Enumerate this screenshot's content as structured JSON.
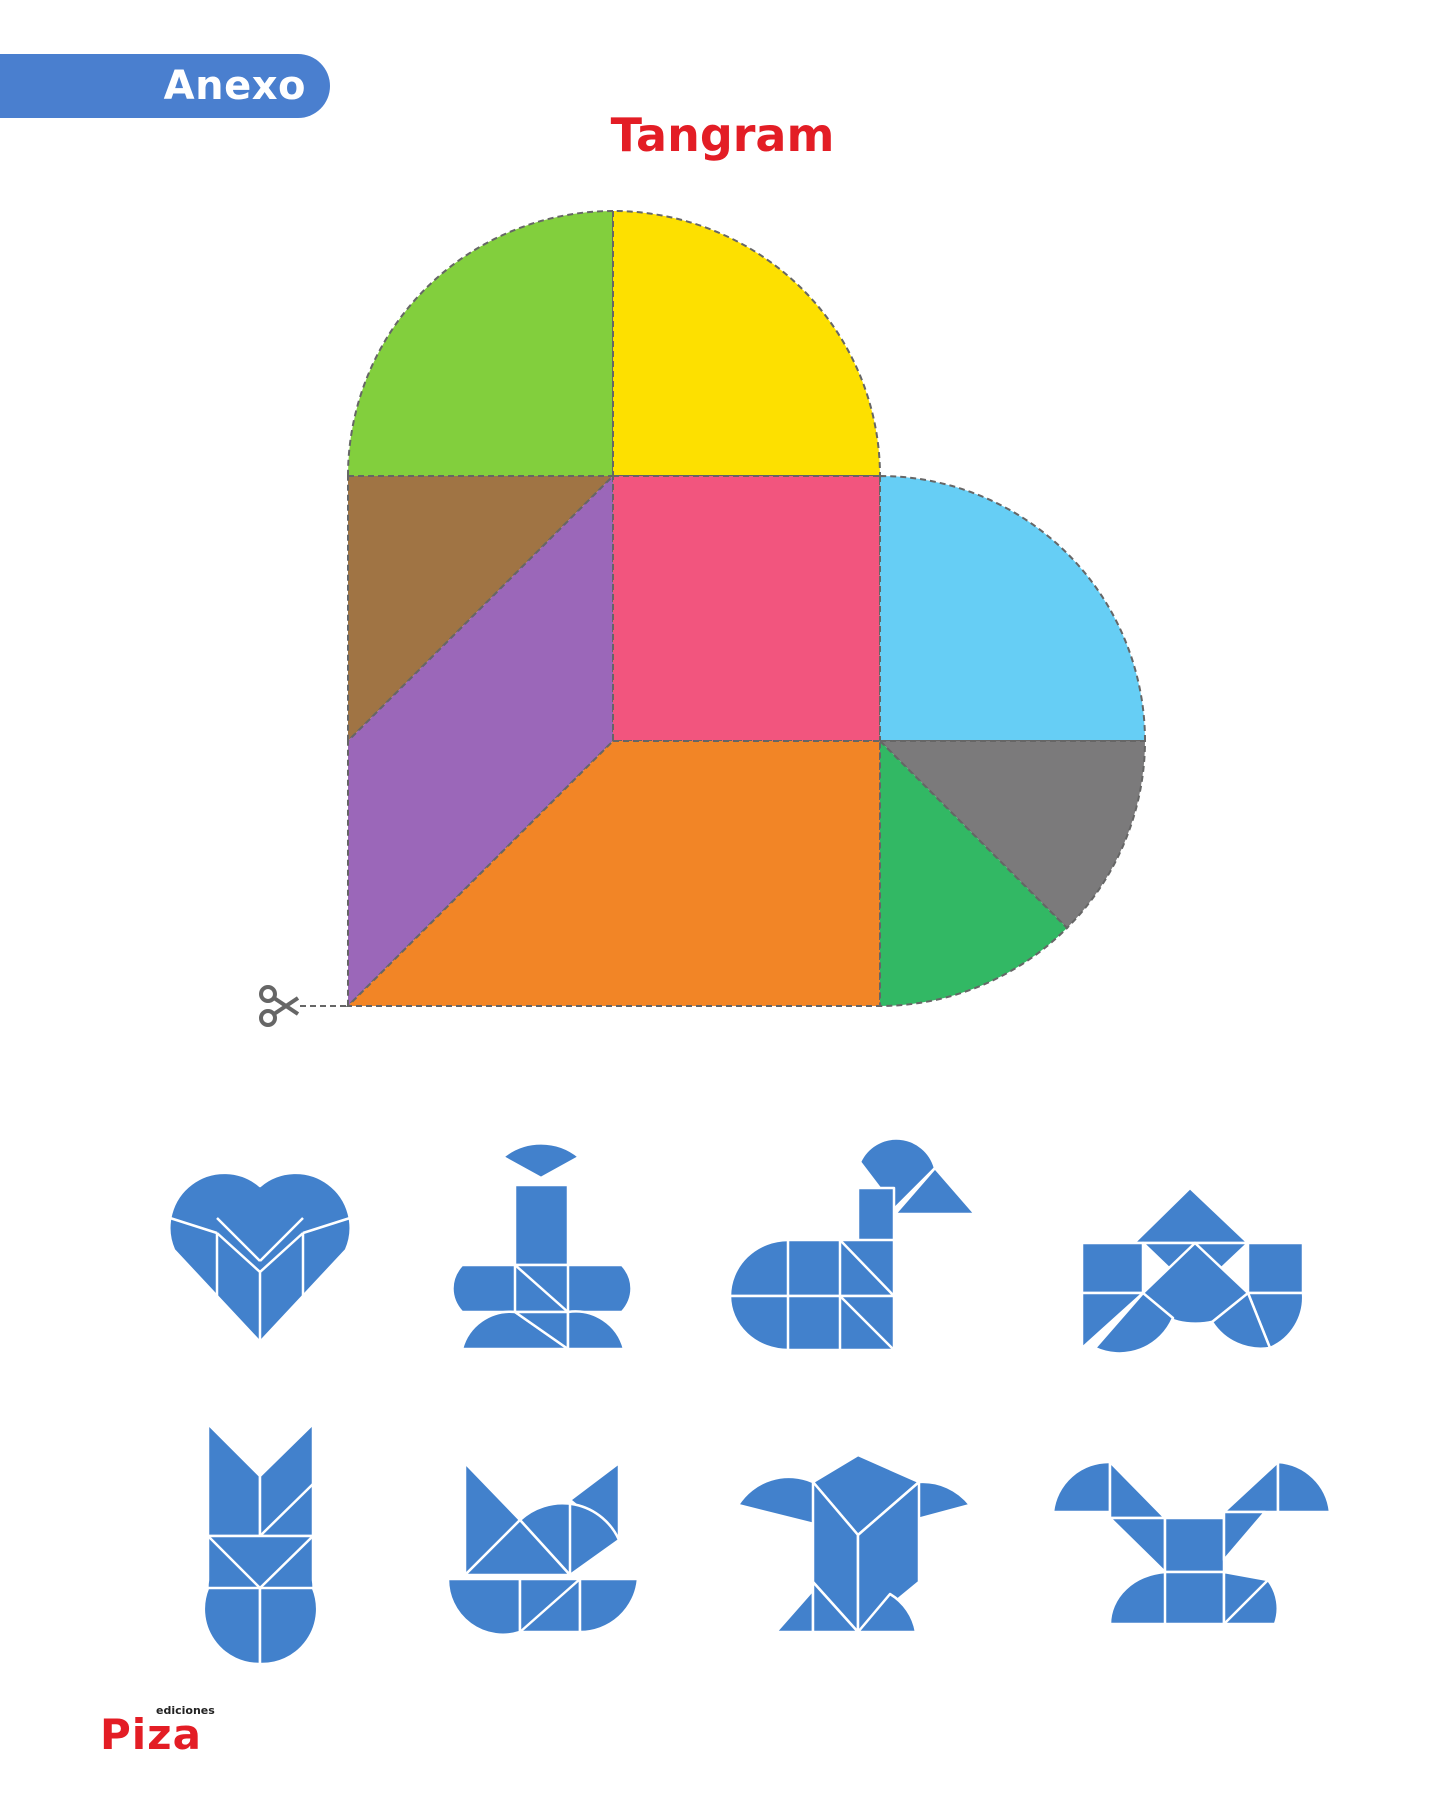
{
  "header": {
    "tab_label": "Anexo"
  },
  "page_title": "Tangram",
  "tangram": {
    "pieces": [
      {
        "name": "green-quarter-circle",
        "color": "#82cf3d"
      },
      {
        "name": "yellow-quarter-circle",
        "color": "#fde000"
      },
      {
        "name": "brown-triangle",
        "color": "#a07444"
      },
      {
        "name": "purple-parallelogram",
        "color": "#9b67b9"
      },
      {
        "name": "pink-square",
        "color": "#f2557e"
      },
      {
        "name": "cyan-quarter-circle",
        "color": "#66cef5"
      },
      {
        "name": "orange-trapezoid",
        "color": "#f28526"
      },
      {
        "name": "gray-sector",
        "color": "#7b7a7b"
      },
      {
        "name": "green-sector",
        "color": "#32b864"
      }
    ],
    "cut_line_icon": "scissors-icon",
    "cut_line_color": "#666666"
  },
  "figures": {
    "fill_color": "#4281cc",
    "count": 8
  },
  "footer": {
    "logo_main": "Piza",
    "logo_sub": "ediciones"
  }
}
